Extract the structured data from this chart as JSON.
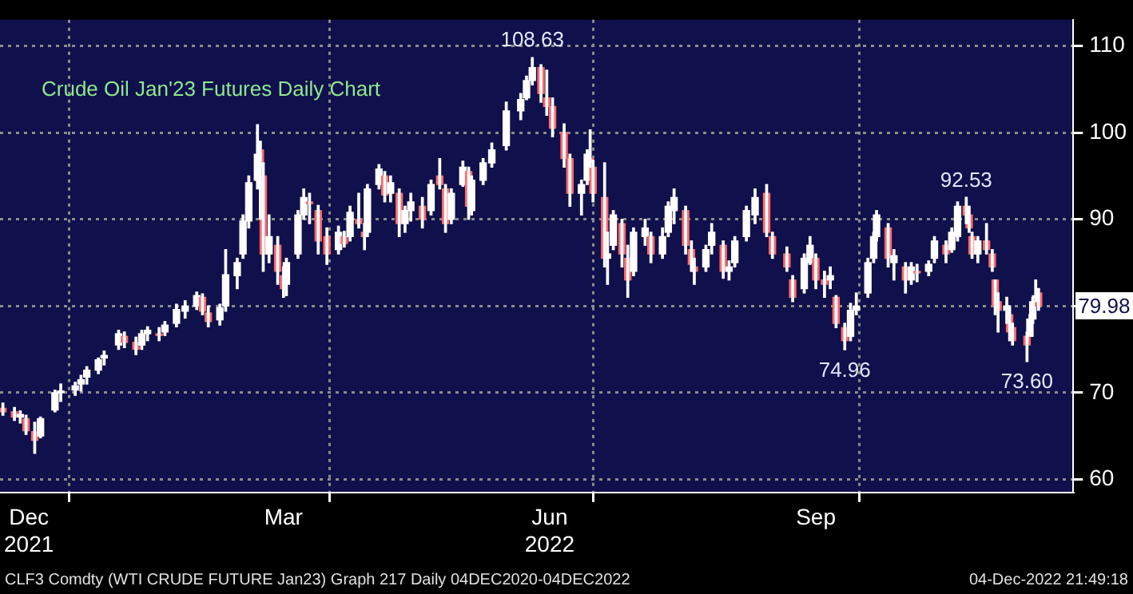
{
  "chart_data": {
    "type": "candlestick",
    "title": "Crude Oil Jan'23 Futures Daily Chart",
    "color": "#ffffff",
    "x": [
      "2021-12-09",
      "2021-12-13",
      "2021-12-15",
      "2021-12-17",
      "2021-12-20",
      "2021-12-22",
      "2021-12-27",
      "2021-12-29",
      "2022-01-03",
      "2022-01-05",
      "2022-01-07",
      "2022-01-11",
      "2022-01-13",
      "2022-01-18",
      "2022-01-20",
      "2022-01-24",
      "2022-01-26",
      "2022-01-28",
      "2022-02-01",
      "2022-02-03",
      "2022-02-07",
      "2022-02-10",
      "2022-02-14",
      "2022-02-16",
      "2022-02-18",
      "2022-02-22",
      "2022-02-24",
      "2022-02-28",
      "2022-03-02",
      "2022-03-04",
      "2022-03-07",
      "2022-03-08",
      "2022-03-09",
      "2022-03-11",
      "2022-03-14",
      "2022-03-16",
      "2022-03-17",
      "2022-03-21",
      "2022-03-23",
      "2022-03-25",
      "2022-03-28",
      "2022-03-31",
      "2022-04-04",
      "2022-04-06",
      "2022-04-08",
      "2022-04-11",
      "2022-04-13",
      "2022-04-14",
      "2022-04-18",
      "2022-04-20",
      "2022-04-22",
      "2022-04-25",
      "2022-04-27",
      "2022-04-29",
      "2022-05-03",
      "2022-05-06",
      "2022-05-09",
      "2022-05-11",
      "2022-05-13",
      "2022-05-17",
      "2022-05-19",
      "2022-05-20",
      "2022-05-24",
      "2022-05-27",
      "2022-06-01",
      "2022-06-06",
      "2022-06-08",
      "2022-06-10",
      "2022-06-13",
      "2022-06-15",
      "2022-06-17",
      "2022-06-21",
      "2022-06-23",
      "2022-06-27",
      "2022-06-29",
      "2022-06-30",
      "2022-07-01",
      "2022-07-05",
      "2022-07-06",
      "2022-07-08",
      "2022-07-11",
      "2022-07-13",
      "2022-07-15",
      "2022-07-19",
      "2022-07-21",
      "2022-07-25",
      "2022-07-27",
      "2022-07-29",
      "2022-08-02",
      "2022-08-04",
      "2022-08-05",
      "2022-08-09",
      "2022-08-11",
      "2022-08-15",
      "2022-08-17",
      "2022-08-19",
      "2022-08-23",
      "2022-08-26",
      "2022-08-30",
      "2022-09-01",
      "2022-09-06",
      "2022-09-08",
      "2022-09-12",
      "2022-09-14",
      "2022-09-16",
      "2022-09-19",
      "2022-09-21",
      "2022-09-23",
      "2022-09-26",
      "2022-09-28",
      "2022-09-30",
      "2022-10-04",
      "2022-10-06",
      "2022-10-07",
      "2022-10-11",
      "2022-10-13",
      "2022-10-17",
      "2022-10-19",
      "2022-10-21",
      "2022-10-25",
      "2022-10-27",
      "2022-10-31",
      "2022-11-02",
      "2022-11-04",
      "2022-11-07",
      "2022-11-08",
      "2022-11-09",
      "2022-11-11",
      "2022-11-14",
      "2022-11-16",
      "2022-11-17",
      "2022-11-18",
      "2022-11-21",
      "2022-11-22",
      "2022-11-23",
      "2022-11-28",
      "2022-11-29",
      "2022-11-30",
      "2022-12-01",
      "2022-12-02"
    ],
    "ohlc": [
      [
        68.2,
        68.8,
        67.4,
        67.8
      ],
      [
        67.8,
        68.3,
        66.8,
        67.2
      ],
      [
        67.2,
        67.9,
        66.5,
        67.5
      ],
      [
        67.0,
        67.4,
        65.2,
        65.6
      ],
      [
        65.5,
        66.6,
        63.0,
        64.5
      ],
      [
        65.0,
        67.2,
        64.8,
        67.0
      ],
      [
        68.0,
        70.3,
        67.8,
        70.0
      ],
      [
        70.0,
        71.0,
        69.0,
        70.2
      ],
      [
        70.3,
        71.2,
        69.7,
        70.8
      ],
      [
        71.0,
        72.0,
        70.2,
        71.5
      ],
      [
        71.8,
        73.0,
        71.0,
        72.6
      ],
      [
        72.6,
        74.0,
        72.2,
        73.8
      ],
      [
        74.0,
        74.8,
        73.2,
        74.3
      ],
      [
        75.5,
        77.2,
        75.0,
        76.8
      ],
      [
        76.5,
        77.0,
        75.2,
        75.8
      ],
      [
        75.8,
        76.4,
        74.4,
        75.0
      ],
      [
        75.5,
        77.2,
        75.0,
        76.8
      ],
      [
        76.8,
        77.6,
        76.0,
        77.2
      ],
      [
        76.8,
        77.5,
        76.0,
        76.6
      ],
      [
        77.0,
        78.2,
        76.6,
        77.8
      ],
      [
        78.0,
        80.2,
        77.6,
        79.6
      ],
      [
        79.4,
        80.6,
        78.6,
        80.0
      ],
      [
        80.0,
        81.6,
        79.6,
        81.2
      ],
      [
        81.0,
        81.4,
        79.0,
        79.4
      ],
      [
        79.2,
        80.0,
        77.6,
        78.2
      ],
      [
        78.4,
        80.2,
        77.8,
        79.8
      ],
      [
        80.0,
        86.5,
        79.4,
        83.6
      ],
      [
        83.5,
        85.5,
        82.0,
        85.0
      ],
      [
        86.0,
        90.5,
        85.5,
        89.8
      ],
      [
        89.8,
        95.0,
        89.0,
        94.2
      ],
      [
        94.5,
        100.9,
        93.5,
        97.5
      ],
      [
        98.0,
        99.0,
        90.0,
        96.0
      ],
      [
        95.0,
        96.5,
        84.0,
        86.0
      ],
      [
        86.0,
        90.5,
        85.0,
        88.0
      ],
      [
        87.0,
        88.0,
        82.5,
        84.0
      ],
      [
        83.5,
        84.5,
        81.0,
        82.0
      ],
      [
        82.5,
        85.5,
        81.2,
        85.0
      ],
      [
        86.0,
        91.0,
        85.5,
        90.5
      ],
      [
        90.5,
        93.5,
        90.0,
        92.5
      ],
      [
        92.0,
        93.0,
        89.5,
        91.8
      ],
      [
        91.0,
        91.6,
        86.0,
        87.5
      ],
      [
        88.0,
        89.0,
        84.8,
        86.0
      ],
      [
        86.5,
        89.2,
        86.0,
        88.5
      ],
      [
        88.0,
        88.6,
        86.8,
        87.2
      ],
      [
        88.0,
        91.5,
        87.5,
        90.8
      ],
      [
        90.0,
        93.0,
        89.0,
        89.5
      ],
      [
        88.5,
        89.5,
        86.5,
        88.0
      ],
      [
        88.5,
        94.0,
        88.0,
        93.5
      ],
      [
        94.0,
        96.3,
        93.5,
        95.8
      ],
      [
        95.0,
        95.5,
        92.0,
        92.8
      ],
      [
        93.0,
        95.0,
        92.0,
        94.2
      ],
      [
        93.0,
        93.5,
        88.0,
        89.5
      ],
      [
        89.5,
        91.5,
        88.5,
        91.0
      ],
      [
        91.0,
        93.0,
        89.8,
        92.0
      ],
      [
        91.5,
        92.5,
        89.0,
        90.0
      ],
      [
        91.0,
        94.5,
        90.5,
        94.0
      ],
      [
        95.0,
        97.0,
        93.5,
        94.0
      ],
      [
        93.5,
        94.0,
        88.5,
        89.5
      ],
      [
        90.0,
        93.5,
        89.5,
        93.0
      ],
      [
        94.0,
        96.7,
        93.8,
        96.0
      ],
      [
        95.5,
        96.0,
        90.0,
        91.5
      ],
      [
        91.0,
        95.0,
        90.5,
        94.5
      ],
      [
        94.5,
        97.0,
        94.0,
        96.5
      ],
      [
        96.5,
        98.8,
        96.0,
        98.0
      ],
      [
        98.5,
        103.5,
        98.0,
        102.5
      ],
      [
        102.5,
        104.5,
        101.5,
        103.8
      ],
      [
        104.0,
        106.5,
        103.8,
        106.0
      ],
      [
        106.0,
        108.63,
        105.5,
        107.5
      ],
      [
        107.5,
        107.8,
        103.5,
        104.5
      ],
      [
        104.0,
        107.2,
        102.0,
        103.0
      ],
      [
        103.0,
        104.0,
        99.5,
        100.5
      ],
      [
        100.0,
        101.0,
        96.0,
        97.0
      ],
      [
        97.0,
        97.5,
        91.5,
        93.0
      ],
      [
        93.0,
        94.5,
        90.5,
        94.0
      ],
      [
        94.5,
        98.0,
        94.0,
        97.5
      ],
      [
        97.0,
        100.3,
        96.0,
        96.5
      ],
      [
        96.0,
        96.8,
        92.0,
        93.0
      ],
      [
        92.5,
        96.5,
        84.5,
        85.5
      ],
      [
        85.5,
        88.5,
        82.5,
        86.0
      ],
      [
        87.0,
        91.0,
        86.5,
        90.5
      ],
      [
        89.5,
        90.0,
        84.5,
        86.0
      ],
      [
        85.5,
        87.0,
        81.0,
        83.0
      ],
      [
        84.0,
        89.0,
        83.5,
        88.5
      ],
      [
        88.0,
        90.0,
        87.0,
        89.0
      ],
      [
        88.0,
        88.5,
        85.0,
        86.0
      ],
      [
        86.0,
        89.0,
        85.5,
        88.0
      ],
      [
        88.5,
        92.0,
        88.0,
        91.5
      ],
      [
        91.0,
        93.5,
        89.5,
        92.5
      ],
      [
        91.0,
        91.5,
        86.0,
        87.0
      ],
      [
        86.5,
        87.5,
        84.0,
        84.8
      ],
      [
        84.5,
        85.5,
        82.5,
        84.0
      ],
      [
        84.5,
        87.0,
        84.0,
        86.5
      ],
      [
        87.0,
        89.5,
        86.0,
        88.5
      ],
      [
        87.0,
        87.5,
        83.2,
        84.0
      ],
      [
        84.0,
        85.2,
        83.0,
        84.5
      ],
      [
        85.0,
        88.0,
        84.5,
        87.5
      ],
      [
        88.0,
        91.5,
        87.5,
        91.0
      ],
      [
        90.5,
        93.5,
        89.5,
        92.5
      ],
      [
        93.0,
        94.0,
        88.0,
        88.5
      ],
      [
        88.0,
        88.5,
        85.5,
        86.0
      ],
      [
        86.0,
        86.8,
        84.0,
        84.5
      ],
      [
        83.0,
        83.5,
        80.5,
        81.0
      ],
      [
        82.0,
        86.0,
        81.5,
        85.5
      ],
      [
        85.0,
        88.0,
        84.8,
        87.0
      ],
      [
        85.5,
        86.0,
        82.0,
        83.0
      ],
      [
        83.0,
        84.0,
        81.0,
        82.5
      ],
      [
        83.0,
        84.5,
        82.0,
        83.5
      ],
      [
        81.0,
        81.2,
        77.5,
        78.0
      ],
      [
        77.5,
        78.0,
        74.96,
        76.0
      ],
      [
        76.5,
        80.3,
        76.0,
        79.5
      ],
      [
        79.5,
        81.5,
        79.0,
        80.0
      ],
      [
        81.5,
        85.5,
        81.0,
        85.0
      ],
      [
        85.5,
        88.5,
        85.0,
        88.0
      ],
      [
        88.0,
        91.0,
        87.5,
        90.5
      ],
      [
        89.0,
        89.5,
        84.5,
        85.5
      ],
      [
        85.0,
        86.5,
        83.0,
        85.8
      ],
      [
        84.5,
        85.0,
        81.5,
        83.0
      ],
      [
        83.0,
        85.0,
        82.5,
        84.5
      ],
      [
        84.0,
        84.8,
        82.8,
        83.8
      ],
      [
        84.0,
        85.2,
        83.5,
        84.8
      ],
      [
        85.5,
        88.0,
        85.0,
        87.5
      ],
      [
        87.0,
        87.5,
        85.0,
        86.0
      ],
      [
        86.5,
        89.0,
        86.2,
        88.5
      ],
      [
        88.0,
        92.0,
        87.5,
        91.5
      ],
      [
        91.5,
        92.53,
        89.5,
        90.5
      ],
      [
        90.5,
        91.5,
        88.5,
        89.0
      ],
      [
        88.0,
        88.5,
        85.5,
        86.0
      ],
      [
        86.0,
        88.0,
        85.0,
        87.5
      ],
      [
        87.5,
        89.5,
        86.0,
        86.5
      ],
      [
        86.0,
        86.5,
        84.0,
        84.5
      ],
      [
        83.0,
        83.0,
        79.0,
        80.0
      ],
      [
        80.5,
        81.5,
        77.0,
        79.5
      ],
      [
        79.5,
        81.0,
        78.0,
        80.0
      ],
      [
        79.0,
        80.0,
        76.0,
        77.0
      ],
      [
        77.5,
        78.0,
        75.5,
        76.0
      ],
      [
        76.5,
        77.0,
        73.6,
        75.5
      ],
      [
        76.5,
        79.0,
        76.5,
        78.5
      ],
      [
        78.5,
        81.0,
        78.0,
        80.5
      ],
      [
        81.0,
        83.0,
        80.5,
        81.0
      ],
      [
        81.5,
        82.0,
        79.5,
        79.98
      ]
    ],
    "colors": [
      "#ff6b6b",
      "#ff6b6b",
      "#ffffff",
      "#ff6b6b",
      "#ff6b6b",
      "#ffffff",
      "#ffffff",
      "#ffffff",
      "#ffffff",
      "#ffffff",
      "#ffffff",
      "#ffffff",
      "#ffffff",
      "#ffffff",
      "#ff6b6b",
      "#ff6b6b",
      "#ffffff",
      "#ffffff",
      "#ff6b6b",
      "#ffffff",
      "#ffffff",
      "#ffffff",
      "#ffffff",
      "#ff6b6b",
      "#ff6b6b",
      "#ffffff",
      "#ffffff",
      "#ffffff",
      "#ffffff",
      "#ffffff",
      "#ffffff",
      "#ff6b6b",
      "#ff6b6b",
      "#ffffff",
      "#ff6b6b",
      "#ff6b6b",
      "#ffffff",
      "#ffffff",
      "#ffffff",
      "#ff6b6b",
      "#ff6b6b",
      "#ff6b6b",
      "#ffffff",
      "#ff6b6b",
      "#ffffff",
      "#ff6b6b",
      "#ff6b6b",
      "#ffffff",
      "#ffffff",
      "#ff6b6b",
      "#ffffff",
      "#ff6b6b",
      "#ffffff",
      "#ffffff",
      "#ff6b6b",
      "#ffffff",
      "#ff6b6b",
      "#ff6b6b",
      "#ffffff",
      "#ffffff",
      "#ff6b6b",
      "#ffffff",
      "#ffffff",
      "#ffffff",
      "#ffffff",
      "#ffffff",
      "#ffffff",
      "#ffffff",
      "#ff6b6b",
      "#ff6b6b",
      "#ff6b6b",
      "#ff6b6b",
      "#ff6b6b",
      "#ffffff",
      "#ffffff",
      "#ff6b6b",
      "#ff6b6b",
      "#ff6b6b",
      "#ffffff",
      "#ffffff",
      "#ff6b6b",
      "#ff6b6b",
      "#ffffff",
      "#ffffff",
      "#ff6b6b",
      "#ffffff",
      "#ffffff",
      "#ffffff",
      "#ff6b6b",
      "#ff6b6b",
      "#ff6b6b",
      "#ffffff",
      "#ffffff",
      "#ff6b6b",
      "#ffffff",
      "#ffffff",
      "#ffffff",
      "#ffffff",
      "#ff6b6b",
      "#ff6b6b",
      "#ff6b6b",
      "#ff6b6b",
      "#ffffff",
      "#ffffff",
      "#ff6b6b",
      "#ff6b6b",
      "#ffffff",
      "#ff6b6b",
      "#ff6b6b",
      "#ffffff",
      "#ffffff",
      "#ffffff",
      "#ffffff",
      "#ffffff",
      "#ff6b6b",
      "#ffffff",
      "#ff6b6b",
      "#ffffff",
      "#ff6b6b",
      "#ffffff",
      "#ffffff",
      "#ff6b6b",
      "#ffffff",
      "#ffffff",
      "#ff6b6b",
      "#ff6b6b",
      "#ff6b6b",
      "#ffffff",
      "#ff6b6b",
      "#ff6b6b",
      "#ff6b6b",
      "#ff6b6b",
      "#ffffff",
      "#ff6b6b",
      "#ff6b6b",
      "#ff6b6b",
      "#ffffff",
      "#ffffff",
      "#ffffff",
      "#ff6b6b"
    ],
    "xlim": [
      "2021-12-08",
      "2022-12-14"
    ],
    "xticks": [
      {
        "value": "2022-01-01",
        "label": null
      },
      {
        "value": "2022-04-01",
        "label": null
      },
      {
        "value": "2022-07-01",
        "label": null
      },
      {
        "value": "2022-10-01",
        "label": null
      },
      {
        "value": "2021-12-18",
        "label": "Dec 2021"
      },
      {
        "value": "2022-03-16",
        "label": "Mar"
      },
      {
        "value": "2022-06-16",
        "label": "Jun 2022"
      },
      {
        "value": "2022-09-16",
        "label": "Sep"
      }
    ],
    "ylim": [
      58.5,
      113
    ],
    "yticks": [
      60,
      70,
      {
        "value": 80,
        "label": null
      },
      90,
      100,
      110
    ],
    "grid": true,
    "legend": false,
    "annotations": [
      {
        "text": "108.63",
        "x": "2022-06-10",
        "y": 108.63
      },
      {
        "text": "92.53",
        "x": "2022-11-07",
        "y": 92.53
      },
      {
        "text": "74.96",
        "x": "2022-09-26",
        "y": 74.96
      },
      {
        "text": "73.60",
        "x": "2022-11-28",
        "y": 73.6
      },
      {
        "text": "79.98",
        "x": "2022-12-02",
        "y": 79.98
      },
      "CLF3 Comdty (WTI CRUDE FUTURE  Jan23) Graph 217  Daily 04DEC2020-04DEC2022",
      "04-Dec-2022 21:49:18"
    ]
  }
}
